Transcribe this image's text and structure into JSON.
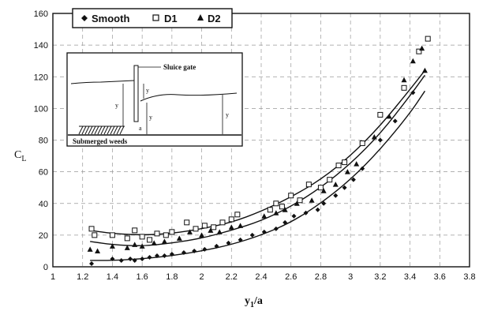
{
  "chart_data": {
    "type": "scatter",
    "xlabel_main": "y",
    "xlabel_sub": "1",
    "xlabel_tail": "/a",
    "ylabel_main": "C",
    "ylabel_sub": "L",
    "xlim": [
      1,
      3.8
    ],
    "ylim": [
      0,
      160
    ],
    "xticks": [
      "1",
      "1.2",
      "1.4",
      "1.6",
      "1.8",
      "2",
      "2.2",
      "2.4",
      "2.6",
      "2.8",
      "3",
      "3.2",
      "3.4",
      "3.6",
      "3.8"
    ],
    "yticks": [
      "0",
      "20",
      "40",
      "60",
      "80",
      "100",
      "120",
      "140",
      "160"
    ],
    "legend_placement": "top-left",
    "series": [
      {
        "name": "Smooth",
        "marker": "filled-diamond",
        "points": [
          [
            1.26,
            2
          ],
          [
            1.4,
            5
          ],
          [
            1.46,
            4
          ],
          [
            1.52,
            5
          ],
          [
            1.55,
            4
          ],
          [
            1.6,
            5
          ],
          [
            1.65,
            6
          ],
          [
            1.7,
            7
          ],
          [
            1.75,
            7
          ],
          [
            1.8,
            8
          ],
          [
            1.88,
            9
          ],
          [
            1.95,
            10
          ],
          [
            2.02,
            11
          ],
          [
            2.1,
            13
          ],
          [
            2.18,
            15
          ],
          [
            2.26,
            17
          ],
          [
            2.34,
            20
          ],
          [
            2.42,
            22
          ],
          [
            2.5,
            24
          ],
          [
            2.56,
            28
          ],
          [
            2.62,
            32
          ],
          [
            2.7,
            34
          ],
          [
            2.78,
            36
          ],
          [
            2.82,
            40
          ],
          [
            2.9,
            45
          ],
          [
            2.96,
            50
          ],
          [
            3.02,
            55
          ],
          [
            3.08,
            62
          ],
          [
            3.2,
            80
          ],
          [
            3.3,
            92
          ],
          [
            3.42,
            110
          ]
        ],
        "fit": [
          [
            1.25,
            4
          ],
          [
            1.4,
            4
          ],
          [
            1.6,
            5
          ],
          [
            1.8,
            7
          ],
          [
            2,
            10
          ],
          [
            2.2,
            14
          ],
          [
            2.4,
            20
          ],
          [
            2.6,
            28
          ],
          [
            2.8,
            40
          ],
          [
            3,
            55
          ],
          [
            3.2,
            74
          ],
          [
            3.4,
            97
          ],
          [
            3.5,
            111
          ]
        ]
      },
      {
        "name": "D1",
        "marker": "open-square",
        "points": [
          [
            1.26,
            24
          ],
          [
            1.28,
            20
          ],
          [
            1.4,
            20
          ],
          [
            1.5,
            18
          ],
          [
            1.55,
            23
          ],
          [
            1.6,
            19
          ],
          [
            1.65,
            17
          ],
          [
            1.7,
            21
          ],
          [
            1.76,
            20
          ],
          [
            1.8,
            22
          ],
          [
            1.9,
            28
          ],
          [
            1.96,
            24
          ],
          [
            2.02,
            26
          ],
          [
            2.08,
            25
          ],
          [
            2.14,
            28
          ],
          [
            2.2,
            30
          ],
          [
            2.24,
            33
          ],
          [
            2.46,
            36
          ],
          [
            2.5,
            40
          ],
          [
            2.54,
            38
          ],
          [
            2.6,
            45
          ],
          [
            2.66,
            42
          ],
          [
            2.72,
            52
          ],
          [
            2.8,
            50
          ],
          [
            2.86,
            55
          ],
          [
            2.92,
            64
          ],
          [
            2.96,
            66
          ],
          [
            3.08,
            78
          ],
          [
            3.2,
            96
          ],
          [
            3.36,
            113
          ],
          [
            3.46,
            136
          ],
          [
            3.52,
            144
          ]
        ],
        "fit": [
          [
            1.25,
            23
          ],
          [
            1.4,
            21
          ],
          [
            1.6,
            20
          ],
          [
            1.8,
            21
          ],
          [
            2,
            24
          ],
          [
            2.2,
            28
          ],
          [
            2.4,
            35
          ],
          [
            2.6,
            44
          ],
          [
            2.8,
            55
          ],
          [
            3,
            70
          ],
          [
            3.2,
            89
          ],
          [
            3.4,
            112
          ],
          [
            3.5,
            124
          ]
        ]
      },
      {
        "name": "D2",
        "marker": "filled-triangle",
        "points": [
          [
            1.25,
            11
          ],
          [
            1.3,
            10
          ],
          [
            1.4,
            13
          ],
          [
            1.5,
            12
          ],
          [
            1.55,
            14
          ],
          [
            1.6,
            13
          ],
          [
            1.68,
            15
          ],
          [
            1.75,
            16
          ],
          [
            1.85,
            18
          ],
          [
            1.92,
            22
          ],
          [
            2.0,
            20
          ],
          [
            2.06,
            23
          ],
          [
            2.12,
            22
          ],
          [
            2.2,
            25
          ],
          [
            2.26,
            26
          ],
          [
            2.42,
            32
          ],
          [
            2.5,
            34
          ],
          [
            2.56,
            36
          ],
          [
            2.64,
            40
          ],
          [
            2.74,
            42
          ],
          [
            2.82,
            48
          ],
          [
            2.9,
            52
          ],
          [
            2.98,
            60
          ],
          [
            3.04,
            65
          ],
          [
            3.16,
            82
          ],
          [
            3.26,
            95
          ],
          [
            3.36,
            118
          ],
          [
            3.42,
            130
          ],
          [
            3.48,
            138
          ],
          [
            3.5,
            124
          ]
        ],
        "fit": [
          [
            1.25,
            16
          ],
          [
            1.4,
            14
          ],
          [
            1.6,
            13
          ],
          [
            1.8,
            15
          ],
          [
            2,
            18
          ],
          [
            2.2,
            23
          ],
          [
            2.4,
            29
          ],
          [
            2.6,
            38
          ],
          [
            2.8,
            50
          ],
          [
            3,
            65
          ],
          [
            3.2,
            84
          ],
          [
            3.4,
            108
          ],
          [
            3.5,
            121
          ]
        ]
      }
    ]
  },
  "inset": {
    "label_gate": "Sluice gate",
    "label_weeds": "Submerged weeds",
    "label_y1": "y",
    "label_y": "y",
    "label_a": "a",
    "label_y0": "y",
    "label_yt": "y"
  }
}
